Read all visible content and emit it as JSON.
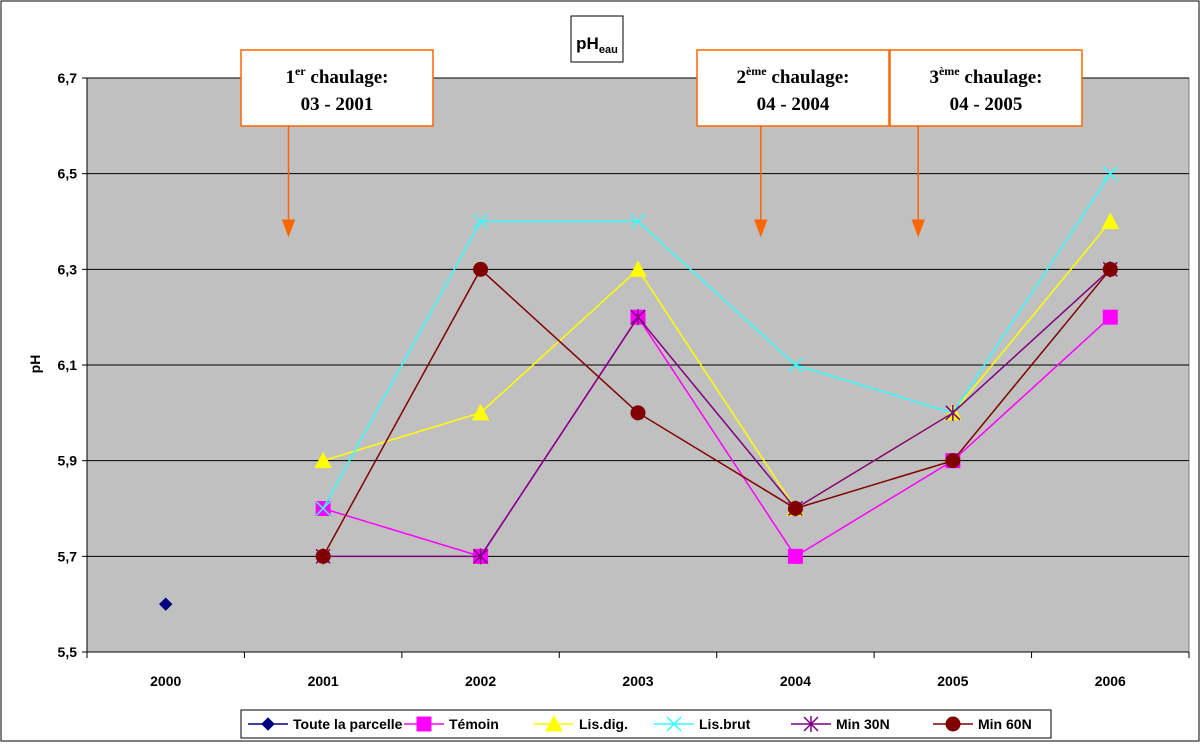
{
  "chart_data": {
    "type": "line",
    "title_main": "pH",
    "title_sub": "eau",
    "ylabel": "pH",
    "ylim": [
      5.5,
      6.7
    ],
    "yticks": [
      "5,5",
      "5,7",
      "5,9",
      "6,1",
      "6,3",
      "6,5",
      "6,7"
    ],
    "ytick_values": [
      5.5,
      5.7,
      5.9,
      6.1,
      6.3,
      6.5,
      6.7
    ],
    "categories": [
      "2000",
      "2001",
      "2002",
      "2003",
      "2004",
      "2005",
      "2006"
    ],
    "grid": true,
    "legend_position": "bottom",
    "series": [
      {
        "name": "Toute la parcelle",
        "color": "#000080",
        "marker": "diamond",
        "values": [
          5.6,
          null,
          null,
          null,
          null,
          null,
          null
        ]
      },
      {
        "name": "Témoin",
        "color": "#FF00FF",
        "marker": "square",
        "values": [
          null,
          5.8,
          5.7,
          6.2,
          5.7,
          5.9,
          6.2
        ]
      },
      {
        "name": "Lis.dig.",
        "color": "#FFFF00",
        "marker": "triangle",
        "values": [
          null,
          5.9,
          6.0,
          6.3,
          5.8,
          6.0,
          6.4
        ]
      },
      {
        "name": "Lis.brut",
        "color": "#33FFFF",
        "marker": "x",
        "values": [
          null,
          5.8,
          6.4,
          6.4,
          6.1,
          6.0,
          6.5
        ]
      },
      {
        "name": "Min 30N",
        "color": "#800080",
        "marker": "star",
        "values": [
          null,
          5.7,
          5.7,
          6.2,
          5.8,
          6.0,
          6.3
        ]
      },
      {
        "name": "Min 60N",
        "color": "#800000",
        "marker": "circle",
        "values": [
          null,
          5.7,
          6.3,
          6.0,
          5.8,
          5.9,
          6.3
        ]
      }
    ],
    "annotations": [
      {
        "ord": "1",
        "sup": "er",
        "word": " chaulage:",
        "date": "03 - 2001",
        "x_value": 0.78
      },
      {
        "ord": "2",
        "sup": "ème",
        "word": " chaulage:",
        "date": "04 - 2004",
        "x_value": 3.78
      },
      {
        "ord": "3",
        "sup": "ème",
        "word": " chaulage:",
        "date": "04 - 2005",
        "x_value": 4.78
      }
    ]
  }
}
